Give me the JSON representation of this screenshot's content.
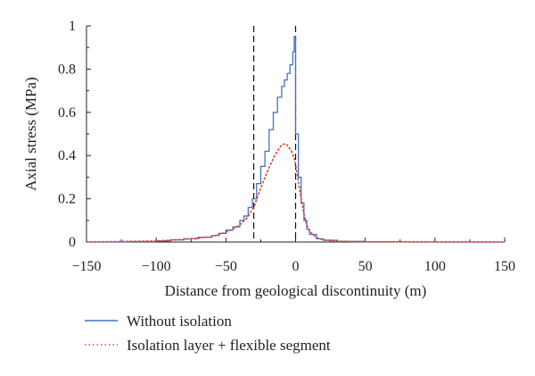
{
  "chart_data": {
    "type": "line",
    "xlabel": "Distance from geological discontinuity (m)",
    "ylabel": "Axial stress (MPa)",
    "xlim": [
      -150,
      150
    ],
    "ylim": [
      0,
      1
    ],
    "xticks": [
      -150,
      -100,
      -50,
      0,
      50,
      100,
      150
    ],
    "yticks": [
      0,
      0.2,
      0.4,
      0.6,
      0.8,
      1
    ],
    "ytick_labels": [
      "0",
      "0.2",
      "0.4",
      "0.6",
      "0.8",
      "1"
    ],
    "xtick_labels": [
      "−150",
      "−100",
      "−50",
      "0",
      "50",
      "100",
      "150"
    ],
    "grid": false,
    "legend_position": "below",
    "vlines": [
      -30,
      0
    ],
    "series": [
      {
        "name": "Without isolation",
        "style": "step-solid",
        "color": "#4472c4",
        "x": [
          -150,
          -120,
          -100,
          -90,
          -80,
          -70,
          -60,
          -55,
          -50,
          -45,
          -40,
          -37,
          -34,
          -31,
          -28,
          -25,
          -22,
          -19,
          -16,
          -13,
          -10,
          -8,
          -6,
          -4,
          -2,
          -1,
          0,
          2,
          4,
          6,
          8,
          10,
          15,
          20,
          30,
          50,
          80,
          150
        ],
        "values": [
          0,
          0.002,
          0.005,
          0.01,
          0.015,
          0.022,
          0.03,
          0.04,
          0.055,
          0.07,
          0.1,
          0.12,
          0.16,
          0.2,
          0.27,
          0.35,
          0.42,
          0.52,
          0.6,
          0.67,
          0.72,
          0.75,
          0.78,
          0.82,
          0.88,
          0.95,
          0.5,
          0.3,
          0.18,
          0.1,
          0.06,
          0.035,
          0.015,
          0.008,
          0.003,
          0.001,
          0,
          0
        ]
      },
      {
        "name": "Isolation layer + flexible segment",
        "style": "dotted",
        "color": "#e0402a",
        "x": [
          -150,
          -100,
          -80,
          -60,
          -50,
          -45,
          -40,
          -35,
          -30,
          -25,
          -20,
          -15,
          -10,
          -7,
          -5,
          -3,
          -1,
          0,
          2,
          4,
          6,
          8,
          10,
          15,
          20,
          30,
          50,
          150
        ],
        "values": [
          0,
          0.005,
          0.012,
          0.025,
          0.045,
          0.06,
          0.08,
          0.11,
          0.16,
          0.25,
          0.33,
          0.4,
          0.45,
          0.455,
          0.44,
          0.42,
          0.39,
          0.36,
          0.28,
          0.2,
          0.13,
          0.08,
          0.05,
          0.02,
          0.01,
          0.004,
          0.001,
          0
        ]
      }
    ]
  }
}
